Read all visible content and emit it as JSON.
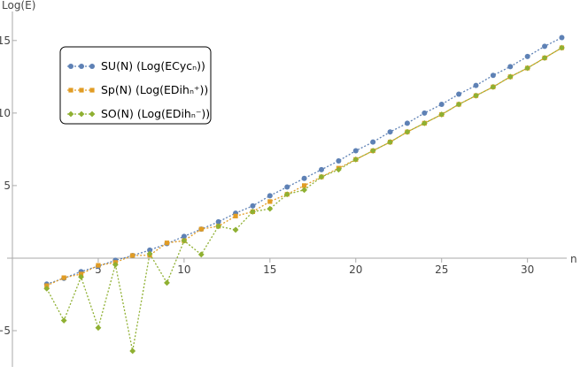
{
  "chart_data": {
    "type": "line",
    "x_label": "n",
    "y_label": "Log(E)",
    "x": [
      2,
      3,
      4,
      5,
      6,
      7,
      8,
      9,
      10,
      11,
      12,
      13,
      14,
      15,
      16,
      17,
      18,
      19,
      20,
      21,
      22,
      23,
      24,
      25,
      26,
      27,
      28,
      29,
      30,
      31,
      32
    ],
    "series": [
      {
        "name": "SU(N) (Log(ECycₙ))",
        "color": "#5e81b5",
        "marker": "circle",
        "values": [
          -1.79,
          -1.39,
          -0.93,
          -0.55,
          -0.15,
          0.18,
          0.55,
          1.0,
          1.5,
          2.0,
          2.5,
          3.1,
          3.6,
          4.3,
          4.9,
          5.5,
          6.1,
          6.7,
          7.4,
          8.0,
          8.7,
          9.3,
          10.0,
          10.6,
          11.3,
          11.9,
          12.6,
          13.2,
          13.9,
          14.6,
          15.2
        ]
      },
      {
        "name": "Sp(N) (Log(EDihₙ⁺))",
        "color": "#e19c24",
        "marker": "square",
        "values": [
          -1.9,
          -1.35,
          -1.1,
          -0.5,
          -0.3,
          0.18,
          0.2,
          1.05,
          1.2,
          2.0,
          2.2,
          2.9,
          3.2,
          3.9,
          4.4,
          5.0,
          5.6,
          6.2,
          6.8,
          7.4,
          8.0,
          8.7,
          9.3,
          9.9,
          10.6,
          11.2,
          11.8,
          12.5,
          13.1,
          13.8,
          14.5
        ]
      },
      {
        "name": "SO(N) (Log(EDihₙ⁻))",
        "color": "#8fb032",
        "marker": "diamond",
        "values": [
          -2.1,
          -4.3,
          -1.3,
          -4.8,
          -0.45,
          -6.4,
          0.3,
          -1.7,
          1.2,
          0.25,
          2.2,
          1.95,
          3.2,
          3.4,
          4.4,
          4.7,
          5.6,
          6.1,
          6.8,
          7.4,
          8.0,
          8.7,
          9.3,
          9.9,
          10.6,
          11.2,
          11.8,
          12.5,
          13.1,
          13.8,
          14.5
        ]
      }
    ],
    "xlim": [
      0,
      32.7
    ],
    "ylim": [
      -7.5,
      17
    ],
    "xticks": [
      5,
      10,
      15,
      20,
      25,
      30
    ],
    "yticks": [
      {
        "value": -5,
        "label": "−5"
      },
      5,
      10,
      15
    ],
    "legend": "upper left",
    "grid": false
  }
}
